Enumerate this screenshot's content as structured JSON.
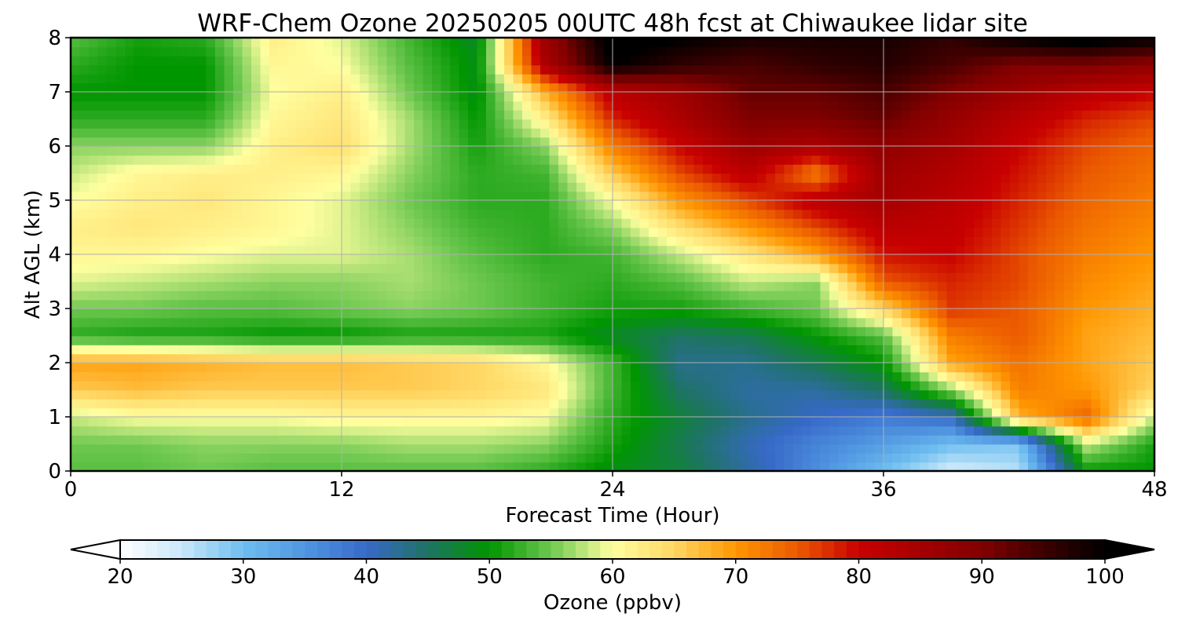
{
  "chart_data": {
    "type": "heatmap",
    "title": "WRF-Chem Ozone  20250205 00UTC 48h fcst at Chiwaukee lidar site",
    "xlabel": "Forecast Time (Hour)",
    "ylabel": "Alt AGL (km)",
    "xlim": [
      0,
      48
    ],
    "ylim": [
      0,
      8
    ],
    "x_ticks": [
      "0",
      "12",
      "24",
      "36",
      "48"
    ],
    "y_ticks": [
      "0",
      "1",
      "2",
      "3",
      "4",
      "5",
      "6",
      "7",
      "8"
    ],
    "grid": true,
    "z_label": "Ozone  (ppbv)",
    "z_range": [
      20,
      100
    ],
    "colorbar": {
      "position": "bottom",
      "extend": "both",
      "ticks": [
        "20",
        "30",
        "40",
        "50",
        "60",
        "70",
        "80",
        "90",
        "100"
      ]
    },
    "x_hours": [
      0,
      3,
      6,
      9,
      12,
      15,
      18,
      21,
      24,
      27,
      30,
      33,
      36,
      39,
      42,
      45,
      48
    ],
    "z_km": [
      0,
      0.5,
      1,
      1.5,
      2,
      2.5,
      3,
      3.5,
      4,
      4.5,
      5,
      5.5,
      6,
      6.5,
      7,
      7.5,
      8
    ],
    "ozone_ppbv_rows_by_altitude": [
      [
        54,
        54,
        55,
        54,
        54,
        54,
        54,
        52,
        49,
        47,
        42,
        36,
        30,
        24,
        26,
        50,
        50
      ],
      [
        55,
        55,
        56,
        56,
        56,
        57,
        57,
        56,
        51,
        46,
        41,
        37,
        34,
        30,
        29,
        58,
        51
      ],
      [
        58,
        60,
        60,
        60,
        61,
        61,
        61,
        60,
        52,
        47,
        43,
        40,
        38,
        40,
        68,
        74,
        58
      ],
      [
        66,
        67,
        66,
        66,
        66,
        66,
        65,
        63,
        53,
        45,
        42,
        42,
        45,
        56,
        72,
        70,
        65
      ],
      [
        69,
        69,
        68,
        67,
        67,
        66,
        65,
        61,
        53,
        43,
        43,
        46,
        50,
        69,
        73,
        69,
        66
      ],
      [
        52,
        51,
        51,
        50,
        50,
        51,
        51,
        51,
        48,
        45,
        46,
        50,
        54,
        72,
        75,
        69,
        67
      ],
      [
        55,
        55,
        54,
        54,
        55,
        56,
        55,
        53,
        51,
        51,
        53,
        55,
        65,
        77,
        75,
        70,
        68
      ],
      [
        59,
        58,
        57,
        56,
        56,
        57,
        55,
        53,
        52,
        54,
        58,
        56,
        75,
        78,
        76,
        71,
        69
      ],
      [
        61,
        61,
        60,
        59,
        59,
        57,
        54,
        52,
        53,
        58,
        63,
        69,
        79,
        80,
        76,
        72,
        70
      ],
      [
        62,
        63,
        62,
        61,
        59,
        56,
        53,
        52,
        56,
        64,
        70,
        76,
        82,
        81,
        77,
        73,
        71
      ],
      [
        60,
        62,
        63,
        61,
        59,
        55,
        52,
        52,
        60,
        70,
        76,
        82,
        85,
        82,
        78,
        74,
        72
      ],
      [
        58,
        61,
        62,
        62,
        61,
        56,
        52,
        53,
        66,
        76,
        82,
        72,
        86,
        83,
        79,
        75,
        73
      ],
      [
        56,
        56,
        56,
        62,
        64,
        57,
        51,
        56,
        72,
        80,
        86,
        84,
        88,
        85,
        80,
        76,
        74
      ],
      [
        52,
        52,
        52,
        61,
        63,
        57,
        50,
        62,
        78,
        84,
        90,
        90,
        92,
        87,
        82,
        78,
        76
      ],
      [
        50,
        50,
        50,
        60,
        62,
        55,
        49,
        68,
        82,
        86,
        92,
        92,
        94,
        90,
        86,
        82,
        80
      ],
      [
        52,
        50,
        50,
        61,
        60,
        54,
        49,
        84,
        100,
        96,
        94,
        96,
        97,
        94,
        90,
        90,
        88
      ],
      [
        54,
        51,
        52,
        62,
        59,
        53,
        48,
        86,
        102,
        100,
        98,
        98,
        98,
        96,
        100,
        102,
        100
      ]
    ]
  }
}
